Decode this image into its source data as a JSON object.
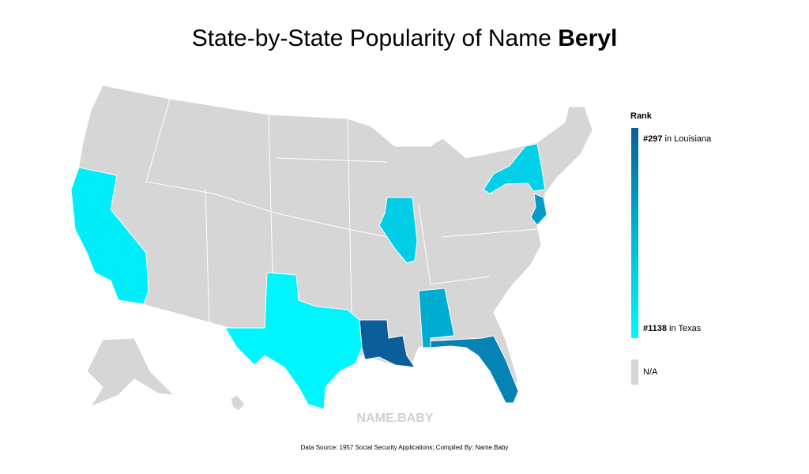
{
  "title": {
    "text": "State-by-State Popularity of Name ",
    "name": "Beryl"
  },
  "map": {
    "colors": [
      "#0b5e99",
      "#00b4d6",
      "#00f6ff"
    ],
    "na_color": "#d6d6d6",
    "states": [
      {
        "name": "Louisiana",
        "rank": 297
      },
      {
        "name": "Florida",
        "rank": 480
      },
      {
        "name": "New Jersey",
        "rank": 600
      },
      {
        "name": "Alabama",
        "rank": 680
      },
      {
        "name": "Illinois",
        "rank": 880
      },
      {
        "name": "New York",
        "rank": 900
      },
      {
        "name": "California",
        "rank": 1080
      },
      {
        "name": "Texas",
        "rank": 1138
      }
    ]
  },
  "legend": {
    "title": "Rank",
    "top": {
      "value": 297,
      "label": "#297",
      "text": "in Louisiana"
    },
    "bottom": {
      "value": 1138,
      "label": "#1138",
      "text": "in Texas"
    },
    "na": "N/A"
  },
  "watermark": "NAME.BABY",
  "source": "Data Source: 1957 Social Security Applications; Compiled By: Name.Baby"
}
